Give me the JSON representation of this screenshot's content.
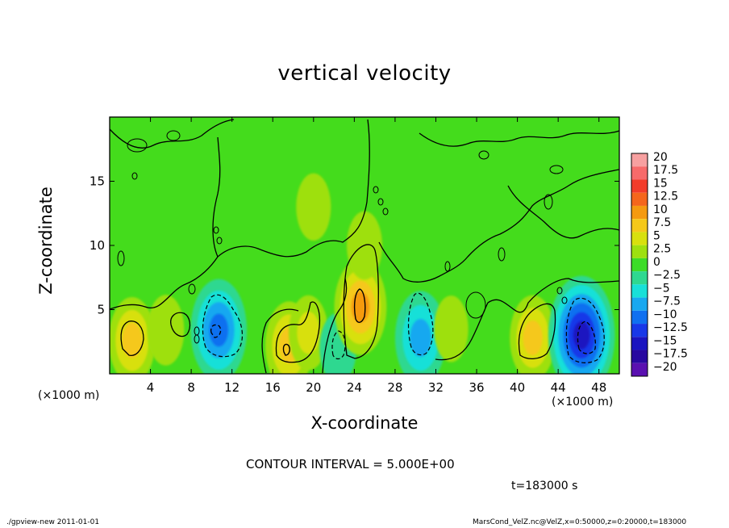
{
  "chart_data": {
    "type": "heatmap",
    "title": "vertical velocity",
    "xlabel": "X-coordinate",
    "ylabel": "Z-coordinate",
    "x_unit_label": "(×1000 m)",
    "xlim": [
      0,
      50
    ],
    "ylim": [
      0,
      20
    ],
    "x_ticks": [
      4,
      8,
      12,
      16,
      20,
      24,
      28,
      32,
      36,
      40,
      44,
      48
    ],
    "y_ticks": [
      5,
      10,
      15
    ],
    "contour_interval_label": "CONTOUR INTERVAL = 5.000E+00",
    "colorbar": {
      "labels": [
        "20",
        "17.5",
        "15",
        "12.5",
        "10",
        "7.5",
        "5",
        "2.5",
        "0",
        "−2.5",
        "−5",
        "−7.5",
        "−10",
        "−12.5",
        "−15",
        "−17.5",
        "−20"
      ],
      "levels": [
        20,
        17.5,
        15,
        12.5,
        10,
        7.5,
        5,
        2.5,
        0,
        -2.5,
        -5,
        -7.5,
        -10,
        -12.5,
        -15,
        -17.5,
        -20
      ],
      "colors": [
        "#f7a0a0",
        "#f76a6a",
        "#f23c2a",
        "#f5661c",
        "#f59a10",
        "#f5c81a",
        "#d8e00e",
        "#9ee010",
        "#3cdc28",
        "#2ed890",
        "#18e0d8",
        "#18a8f0",
        "#1070f0",
        "#1838e8",
        "#1a14c0",
        "#2808a0",
        "#5a10b0"
      ]
    },
    "features": [
      {
        "x": 2.2,
        "z": 2.6,
        "w": 6.8
      },
      {
        "x": 5.5,
        "z": 3.4,
        "w": 3.0
      },
      {
        "x": 10.7,
        "z": 3.4,
        "w": -10.5
      },
      {
        "x": 17.6,
        "z": 2.2,
        "w": 7.2
      },
      {
        "x": 19.5,
        "z": 3.2,
        "w": 4.0
      },
      {
        "x": 22.4,
        "z": 2.0,
        "w": -3.0
      },
      {
        "x": 24.6,
        "z": 5.2,
        "w": 9.0
      },
      {
        "x": 25.0,
        "z": 10.0,
        "w": 2.5
      },
      {
        "x": 20.0,
        "z": 13.0,
        "w": 2.2
      },
      {
        "x": 30.5,
        "z": 2.8,
        "w": -8.5
      },
      {
        "x": 33.5,
        "z": 3.5,
        "w": 2.0
      },
      {
        "x": 41.5,
        "z": 2.8,
        "w": 6.5
      },
      {
        "x": 46.3,
        "z": 3.0,
        "w": -14.5
      }
    ]
  },
  "time_label": "t=183000 s",
  "footer": {
    "left": "./gpview-new   2011-01-01",
    "right": "MarsCond_VelZ.nc@VelZ,x=0:50000,z=0:20000,t=183000"
  }
}
